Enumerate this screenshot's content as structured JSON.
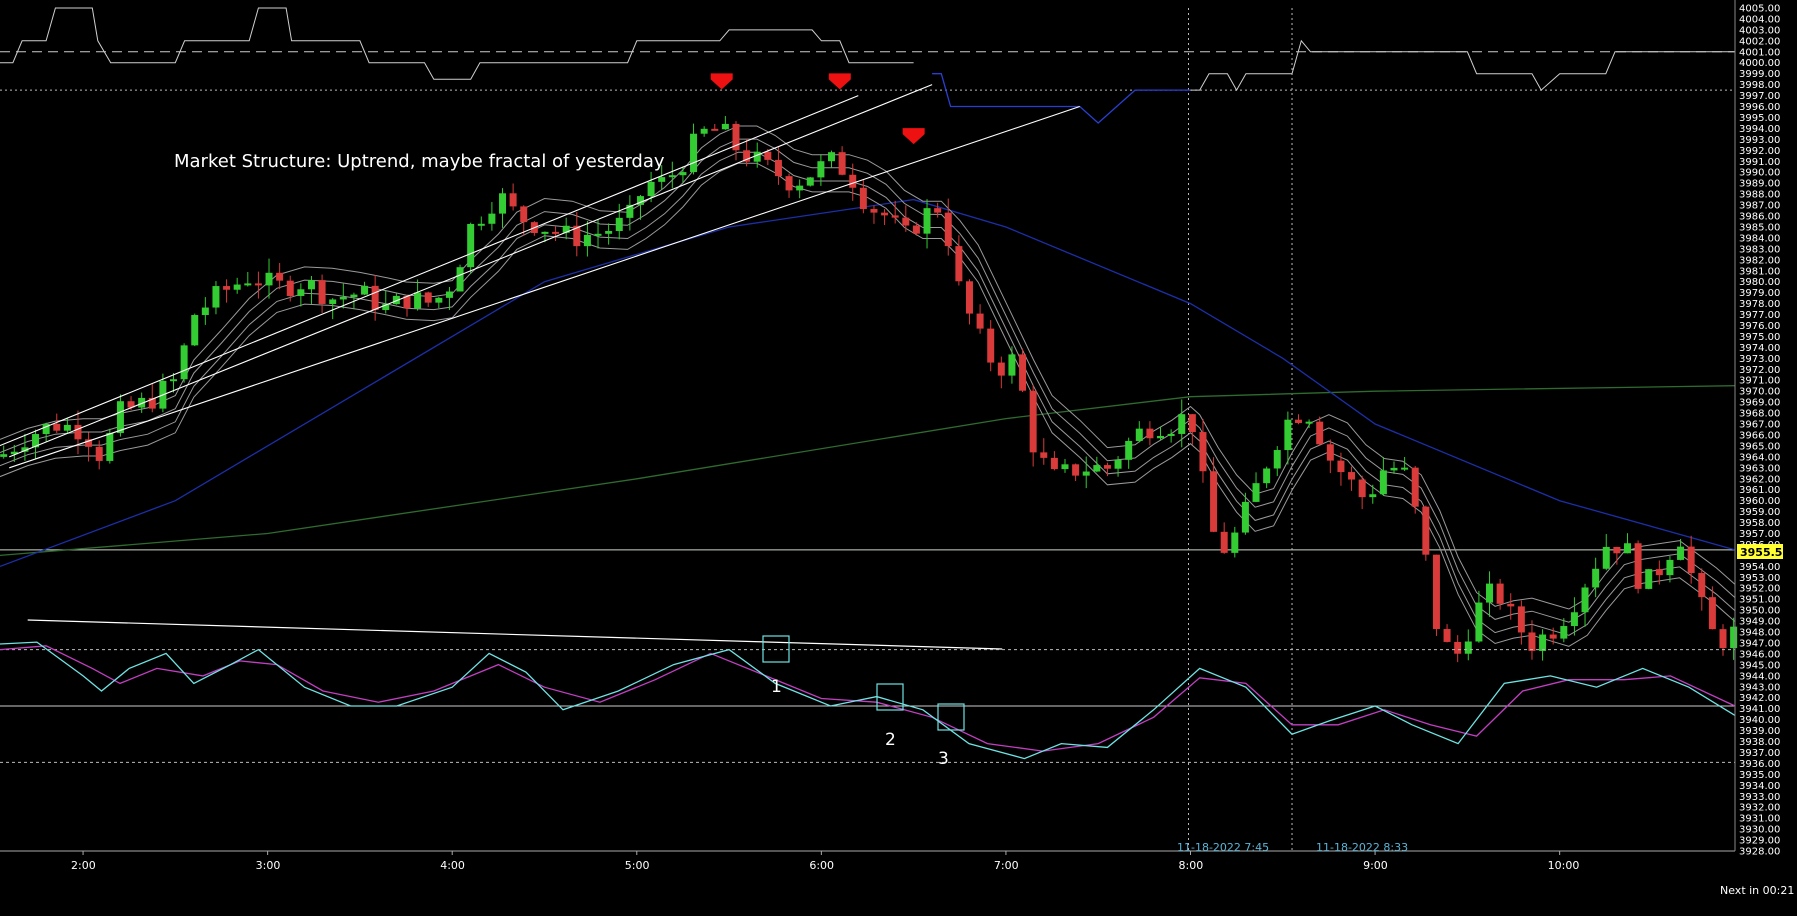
{
  "colors": {
    "background": "#000000",
    "bull": "#33cc33",
    "bear": "#d93a3a",
    "ema_fast": "#9a9a9a",
    "ma_blue": "#1c2fa8",
    "ma_green": "#2f6b2f",
    "stoch_k": "#6fe3e3",
    "stoch_d": "#c23fc2",
    "trendline": "#ffffff",
    "box": "#6fe3e3",
    "current_price_bg": "#ffff33",
    "session_line": "#8ab"
  },
  "annotation": {
    "market_structure": "Market Structure:  Uptrend, maybe fractal of yesterday"
  },
  "stamps": {
    "first": "11-18-2022 7:45",
    "second": "11-18-2022 8:33"
  },
  "footer": {
    "next_bar": "Next in 00:21"
  },
  "current_price": {
    "label": "3955.50"
  },
  "box_labels": [
    "1",
    "2",
    "3"
  ],
  "chart_data": {
    "type": "candlestick",
    "price_axis": {
      "min": 3928.0,
      "max": 4005.0,
      "tick_labels": [
        "4005.00",
        "4004.00",
        "4003.00",
        "4002.00",
        "4001.00",
        "4000.00",
        "3999.00",
        "3998.00",
        "3997.00",
        "3996.00",
        "3995.00",
        "3994.00",
        "3993.00",
        "3992.00",
        "3991.00",
        "3990.00",
        "3989.00",
        "3988.00",
        "3987.00",
        "3986.00",
        "3985.00",
        "3984.00",
        "3983.00",
        "3982.00",
        "3981.00",
        "3980.00",
        "3979.00",
        "3978.00",
        "3977.00",
        "3976.00",
        "3975.00",
        "3974.00",
        "3973.00",
        "3972.00",
        "3971.00",
        "3970.00",
        "3969.00",
        "3968.00",
        "3967.00",
        "3966.00",
        "3965.00",
        "3964.00",
        "3963.00",
        "3962.00",
        "3961.00",
        "3960.00",
        "3959.00",
        "3958.00",
        "3957.00",
        "3956.00",
        "3955.00",
        "3954.00",
        "3953.00",
        "3952.00",
        "3951.00",
        "3950.00",
        "3949.00",
        "3948.00",
        "3947.00",
        "3946.00",
        "3945.00",
        "3944.00",
        "3943.00",
        "3942.00",
        "3941.00",
        "3940.00",
        "3939.00",
        "3938.00",
        "3937.00",
        "3936.00",
        "3935.00",
        "3934.00",
        "3933.00",
        "3932.00",
        "3931.00",
        "3930.00",
        "3929.00",
        "3928.00"
      ]
    },
    "time_axis": {
      "start_hour": 1.55,
      "end_hour": 10.95,
      "tick_labels": [
        {
          "hour": 2.0,
          "label": "2:00"
        },
        {
          "hour": 3.0,
          "label": "3:00"
        },
        {
          "hour": 4.0,
          "label": "4:00"
        },
        {
          "hour": 5.0,
          "label": "5:00"
        },
        {
          "hour": 6.0,
          "label": "6:00"
        },
        {
          "hour": 7.0,
          "label": "7:00"
        },
        {
          "hour": 8.0,
          "label": "8:00"
        },
        {
          "hour": 9.0,
          "label": "9:00"
        },
        {
          "hour": 10.0,
          "label": "10:00"
        }
      ]
    },
    "close_path": [
      [
        1.55,
        3964
      ],
      [
        1.7,
        3966
      ],
      [
        1.85,
        3967
      ],
      [
        2.0,
        3966.5
      ],
      [
        2.1,
        3964
      ],
      [
        2.2,
        3968
      ],
      [
        2.35,
        3969
      ],
      [
        2.5,
        3971
      ],
      [
        2.6,
        3977
      ],
      [
        2.75,
        3979
      ],
      [
        2.9,
        3980.5
      ],
      [
        3.05,
        3979.5
      ],
      [
        3.2,
        3980
      ],
      [
        3.35,
        3978.5
      ],
      [
        3.5,
        3979
      ],
      [
        3.65,
        3977.5
      ],
      [
        3.75,
        3978.5
      ],
      [
        3.9,
        3978
      ],
      [
        4.0,
        3980
      ],
      [
        4.1,
        3985
      ],
      [
        4.25,
        3988
      ],
      [
        4.35,
        3986
      ],
      [
        4.5,
        3985
      ],
      [
        4.65,
        3984
      ],
      [
        4.8,
        3984.5
      ],
      [
        4.95,
        3985.5
      ],
      [
        5.05,
        3989
      ],
      [
        5.15,
        3989
      ],
      [
        5.25,
        3991
      ],
      [
        5.35,
        3993.5
      ],
      [
        5.45,
        3994
      ],
      [
        5.55,
        3992
      ],
      [
        5.65,
        3991
      ],
      [
        5.75,
        3990
      ],
      [
        5.85,
        3989
      ],
      [
        5.95,
        3990
      ],
      [
        6.05,
        3991
      ],
      [
        6.15,
        3990
      ],
      [
        6.25,
        3987
      ],
      [
        6.35,
        3986
      ],
      [
        6.45,
        3984
      ],
      [
        6.55,
        3986
      ],
      [
        6.65,
        3987
      ],
      [
        6.75,
        3979
      ],
      [
        6.85,
        3975
      ],
      [
        6.95,
        3972
      ],
      [
        7.05,
        3973
      ],
      [
        7.15,
        3965
      ],
      [
        7.25,
        3962
      ],
      [
        7.4,
        3963
      ],
      [
        7.55,
        3963
      ],
      [
        7.7,
        3966
      ],
      [
        7.8,
        3967
      ],
      [
        7.9,
        3967
      ],
      [
        8.0,
        3968
      ],
      [
        8.05,
        3963
      ],
      [
        8.15,
        3955
      ],
      [
        8.25,
        3957
      ],
      [
        8.35,
        3961
      ],
      [
        8.45,
        3965
      ],
      [
        8.55,
        3968
      ],
      [
        8.65,
        3968
      ],
      [
        8.75,
        3964
      ],
      [
        8.85,
        3962
      ],
      [
        8.95,
        3960
      ],
      [
        9.05,
        3963
      ],
      [
        9.15,
        3963
      ],
      [
        9.25,
        3957
      ],
      [
        9.35,
        3947
      ],
      [
        9.45,
        3946
      ],
      [
        9.55,
        3950
      ],
      [
        9.65,
        3952
      ],
      [
        9.75,
        3949
      ],
      [
        9.85,
        3947
      ],
      [
        9.95,
        3948
      ],
      [
        10.05,
        3950
      ],
      [
        10.15,
        3953
      ],
      [
        10.25,
        3956
      ],
      [
        10.35,
        3956
      ],
      [
        10.45,
        3952
      ],
      [
        10.55,
        3954
      ],
      [
        10.65,
        3957
      ],
      [
        10.75,
        3951
      ],
      [
        10.85,
        3947
      ],
      [
        10.95,
        3948
      ]
    ],
    "moving_averages": [
      {
        "color_key": "ma_green",
        "points": [
          [
            1.55,
            3955
          ],
          [
            3.0,
            3957
          ],
          [
            5.0,
            3962
          ],
          [
            7.0,
            3967.5
          ],
          [
            8.0,
            3969.5
          ],
          [
            9.0,
            3970
          ],
          [
            10.95,
            3970.5
          ]
        ]
      },
      {
        "color_key": "ma_blue",
        "points": [
          [
            1.55,
            3954
          ],
          [
            2.5,
            3960
          ],
          [
            3.5,
            3970
          ],
          [
            4.5,
            3980
          ],
          [
            5.5,
            3985
          ],
          [
            6.5,
            3987.5
          ],
          [
            7.0,
            3985
          ],
          [
            8.0,
            3978
          ],
          [
            8.5,
            3973
          ],
          [
            9.0,
            3967
          ],
          [
            10.0,
            3960
          ],
          [
            10.95,
            3955.5
          ]
        ]
      }
    ],
    "stochastic": {
      "range": [
        0,
        100
      ],
      "levels": [
        80,
        50,
        20
      ],
      "k_points": [
        [
          1.55,
          83
        ],
        [
          1.75,
          84
        ],
        [
          2.0,
          66
        ],
        [
          2.1,
          58
        ],
        [
          2.25,
          70
        ],
        [
          2.45,
          78
        ],
        [
          2.6,
          62
        ],
        [
          2.8,
          72
        ],
        [
          2.95,
          80
        ],
        [
          3.2,
          60
        ],
        [
          3.45,
          50
        ],
        [
          3.7,
          50
        ],
        [
          4.0,
          60
        ],
        [
          4.2,
          78
        ],
        [
          4.4,
          68
        ],
        [
          4.6,
          48
        ],
        [
          4.9,
          58
        ],
        [
          5.2,
          72
        ],
        [
          5.5,
          80
        ],
        [
          5.75,
          62
        ],
        [
          6.05,
          50
        ],
        [
          6.3,
          55
        ],
        [
          6.55,
          48
        ],
        [
          6.8,
          30
        ],
        [
          7.1,
          22
        ],
        [
          7.3,
          30
        ],
        [
          7.55,
          28
        ],
        [
          7.8,
          48
        ],
        [
          8.05,
          70
        ],
        [
          8.3,
          60
        ],
        [
          8.55,
          35
        ],
        [
          8.75,
          42
        ],
        [
          9.0,
          50
        ],
        [
          9.2,
          40
        ],
        [
          9.45,
          30
        ],
        [
          9.7,
          62
        ],
        [
          9.95,
          66
        ],
        [
          10.2,
          60
        ],
        [
          10.45,
          70
        ],
        [
          10.7,
          60
        ],
        [
          10.95,
          45
        ]
      ],
      "d_points": [
        [
          1.55,
          80
        ],
        [
          1.8,
          82
        ],
        [
          2.05,
          70
        ],
        [
          2.2,
          62
        ],
        [
          2.4,
          70
        ],
        [
          2.65,
          66
        ],
        [
          2.85,
          74
        ],
        [
          3.05,
          72
        ],
        [
          3.3,
          58
        ],
        [
          3.6,
          52
        ],
        [
          3.9,
          58
        ],
        [
          4.25,
          72
        ],
        [
          4.5,
          60
        ],
        [
          4.8,
          52
        ],
        [
          5.1,
          64
        ],
        [
          5.4,
          78
        ],
        [
          5.7,
          66
        ],
        [
          6.0,
          54
        ],
        [
          6.3,
          52
        ],
        [
          6.6,
          44
        ],
        [
          6.9,
          30
        ],
        [
          7.2,
          26
        ],
        [
          7.5,
          30
        ],
        [
          7.8,
          44
        ],
        [
          8.05,
          65
        ],
        [
          8.3,
          62
        ],
        [
          8.55,
          40
        ],
        [
          8.8,
          40
        ],
        [
          9.05,
          48
        ],
        [
          9.3,
          40
        ],
        [
          9.55,
          34
        ],
        [
          9.8,
          58
        ],
        [
          10.05,
          64
        ],
        [
          10.35,
          64
        ],
        [
          10.6,
          66
        ],
        [
          10.95,
          50
        ]
      ]
    }
  }
}
